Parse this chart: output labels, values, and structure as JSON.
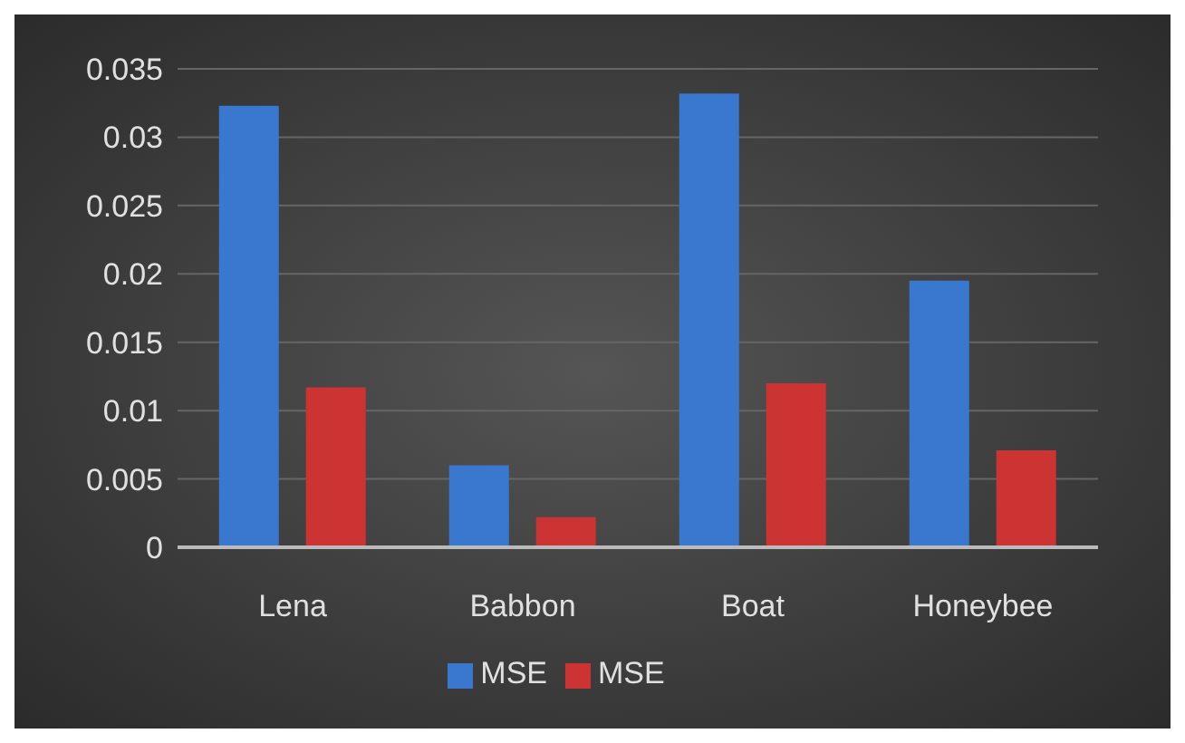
{
  "chart_data": {
    "type": "bar",
    "categories": [
      "Lena",
      "Babbon",
      "Boat",
      "Honeybee"
    ],
    "series": [
      {
        "name": "MSE",
        "color": "#3a78d0",
        "values": [
          0.0323,
          0.006,
          0.0332,
          0.0195
        ]
      },
      {
        "name": "MSE",
        "color": "#cc3333",
        "values": [
          0.0117,
          0.0022,
          0.012,
          0.0071
        ]
      }
    ],
    "ylim": [
      0,
      0.035
    ],
    "yticks": [
      0,
      0.005,
      0.01,
      0.015,
      0.02,
      0.025,
      0.03,
      0.035
    ],
    "grid": "y",
    "legend": "bottom"
  }
}
